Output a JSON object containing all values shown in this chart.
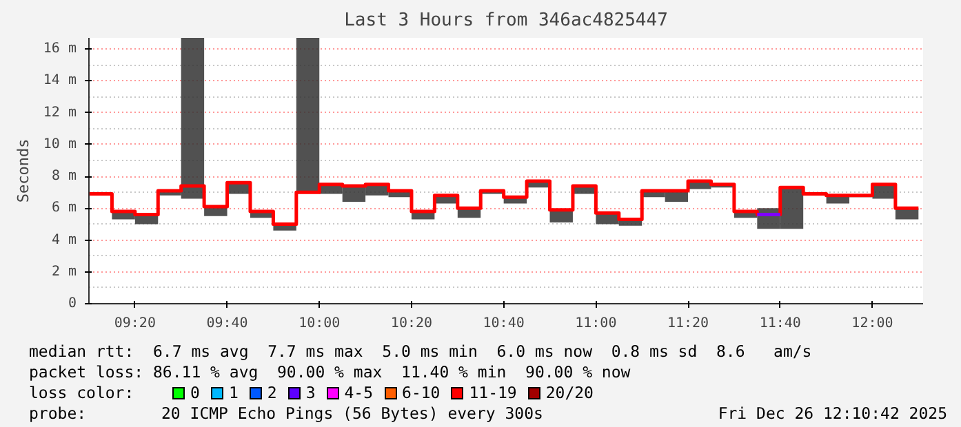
{
  "chart_data": {
    "type": "step",
    "title": "Last 3 Hours from 346ac4825447",
    "ylabel": "Seconds",
    "x": [
      "2025-12-26T09:10",
      "2025-12-26T09:15",
      "2025-12-26T09:20",
      "2025-12-26T09:25",
      "2025-12-26T09:30",
      "2025-12-26T09:35",
      "2025-12-26T09:40",
      "2025-12-26T09:45",
      "2025-12-26T09:50",
      "2025-12-26T09:55",
      "2025-12-26T10:00",
      "2025-12-26T10:05",
      "2025-12-26T10:10",
      "2025-12-26T10:15",
      "2025-12-26T10:20",
      "2025-12-26T10:25",
      "2025-12-26T10:30",
      "2025-12-26T10:35",
      "2025-12-26T10:40",
      "2025-12-26T10:45",
      "2025-12-26T10:50",
      "2025-12-26T10:55",
      "2025-12-26T11:00",
      "2025-12-26T11:05",
      "2025-12-26T11:10",
      "2025-12-26T11:15",
      "2025-12-26T11:20",
      "2025-12-26T11:25",
      "2025-12-26T11:30",
      "2025-12-26T11:35",
      "2025-12-26T11:40",
      "2025-12-26T11:45",
      "2025-12-26T11:50",
      "2025-12-26T11:55",
      "2025-12-26T12:00",
      "2025-12-26T12:05",
      "2025-12-26T12:10"
    ],
    "series": [
      {
        "color": "#ff0000",
        "values": [
          6.9,
          5.8,
          5.6,
          7.1,
          7.4,
          6.1,
          7.6,
          5.8,
          5.0,
          7.0,
          7.5,
          7.4,
          7.5,
          7.1,
          5.8,
          6.8,
          6.0,
          7.1,
          6.7,
          7.7,
          5.9,
          7.4,
          5.7,
          5.3,
          7.1,
          7.1,
          7.7,
          7.5,
          5.8,
          5.6,
          7.3,
          6.9,
          6.8,
          6.8,
          7.5,
          6.0,
          6.0
        ],
        "lower": [
          6.8,
          5.3,
          5.0,
          6.8,
          6.6,
          5.5,
          6.9,
          5.4,
          4.6,
          7.0,
          6.9,
          6.4,
          6.8,
          6.7,
          5.3,
          6.3,
          5.4,
          6.9,
          6.3,
          7.3,
          5.1,
          6.9,
          5.0,
          4.9,
          6.7,
          6.4,
          7.2,
          7.3,
          5.4,
          4.7,
          4.7,
          6.8,
          6.3,
          6.7,
          6.6,
          5.3,
          5.3
        ],
        "upper": [
          6.9,
          5.8,
          5.6,
          7.1,
          16.7,
          6.1,
          7.6,
          5.8,
          5.0,
          16.7,
          7.5,
          7.4,
          7.5,
          7.1,
          5.8,
          6.8,
          6.0,
          7.1,
          6.7,
          7.7,
          5.9,
          7.4,
          5.7,
          5.3,
          7.1,
          7.1,
          7.7,
          7.5,
          5.8,
          6.0,
          7.3,
          6.9,
          6.8,
          6.8,
          7.5,
          6.0,
          6.0
        ]
      },
      {
        "color": "#7f00ff",
        "x": [
          "2025-12-26T11:35",
          "2025-12-26T11:40"
        ],
        "values": [
          5.6,
          5.6
        ]
      }
    ],
    "xlim": [
      "2025-12-26T09:10",
      "2025-12-26T12:11"
    ],
    "xticks": [
      {
        "value": "2025-12-26T09:20",
        "label": "09:20"
      },
      {
        "value": "2025-12-26T09:40",
        "label": "09:40"
      },
      {
        "value": "2025-12-26T10:00",
        "label": "10:00"
      },
      {
        "value": "2025-12-26T10:20",
        "label": "10:20"
      },
      {
        "value": "2025-12-26T10:40",
        "label": "10:40"
      },
      {
        "value": "2025-12-26T11:00",
        "label": "11:00"
      },
      {
        "value": "2025-12-26T11:20",
        "label": "11:20"
      },
      {
        "value": "2025-12-26T11:40",
        "label": "11:40"
      },
      {
        "value": "2025-12-26T12:00",
        "label": "12:00"
      }
    ],
    "ylim": [
      0,
      16.7
    ],
    "yticks": [
      0,
      {
        "value": 2,
        "label": "2 m"
      },
      {
        "value": 4,
        "label": "4 m"
      },
      {
        "value": 6,
        "label": "6 m"
      },
      {
        "value": 8,
        "label": "8 m"
      },
      {
        "value": 10,
        "label": "10 m"
      },
      {
        "value": 12,
        "label": "12 m"
      },
      {
        "value": 14,
        "label": "14 m"
      },
      {
        "value": 16,
        "label": "16 m"
      }
    ],
    "grid": true,
    "annotations": [
      "median rtt:  6.7 ms avg  7.7 ms max  5.0 ms min  6.0 ms now  0.8 ms sd  8.6   am/s",
      "packet loss: 86.11 % avg  90.00 % max  11.40 % min  90.00 % now",
      "loss color:",
      "0",
      "1",
      "2",
      "3",
      "4-5",
      "6-10",
      "11-19",
      "20/20",
      "probe:",
      "20 ICMP Echo Pings (56 Bytes) every 300s",
      "Fri Dec 26 12:10:42 2025"
    ]
  }
}
